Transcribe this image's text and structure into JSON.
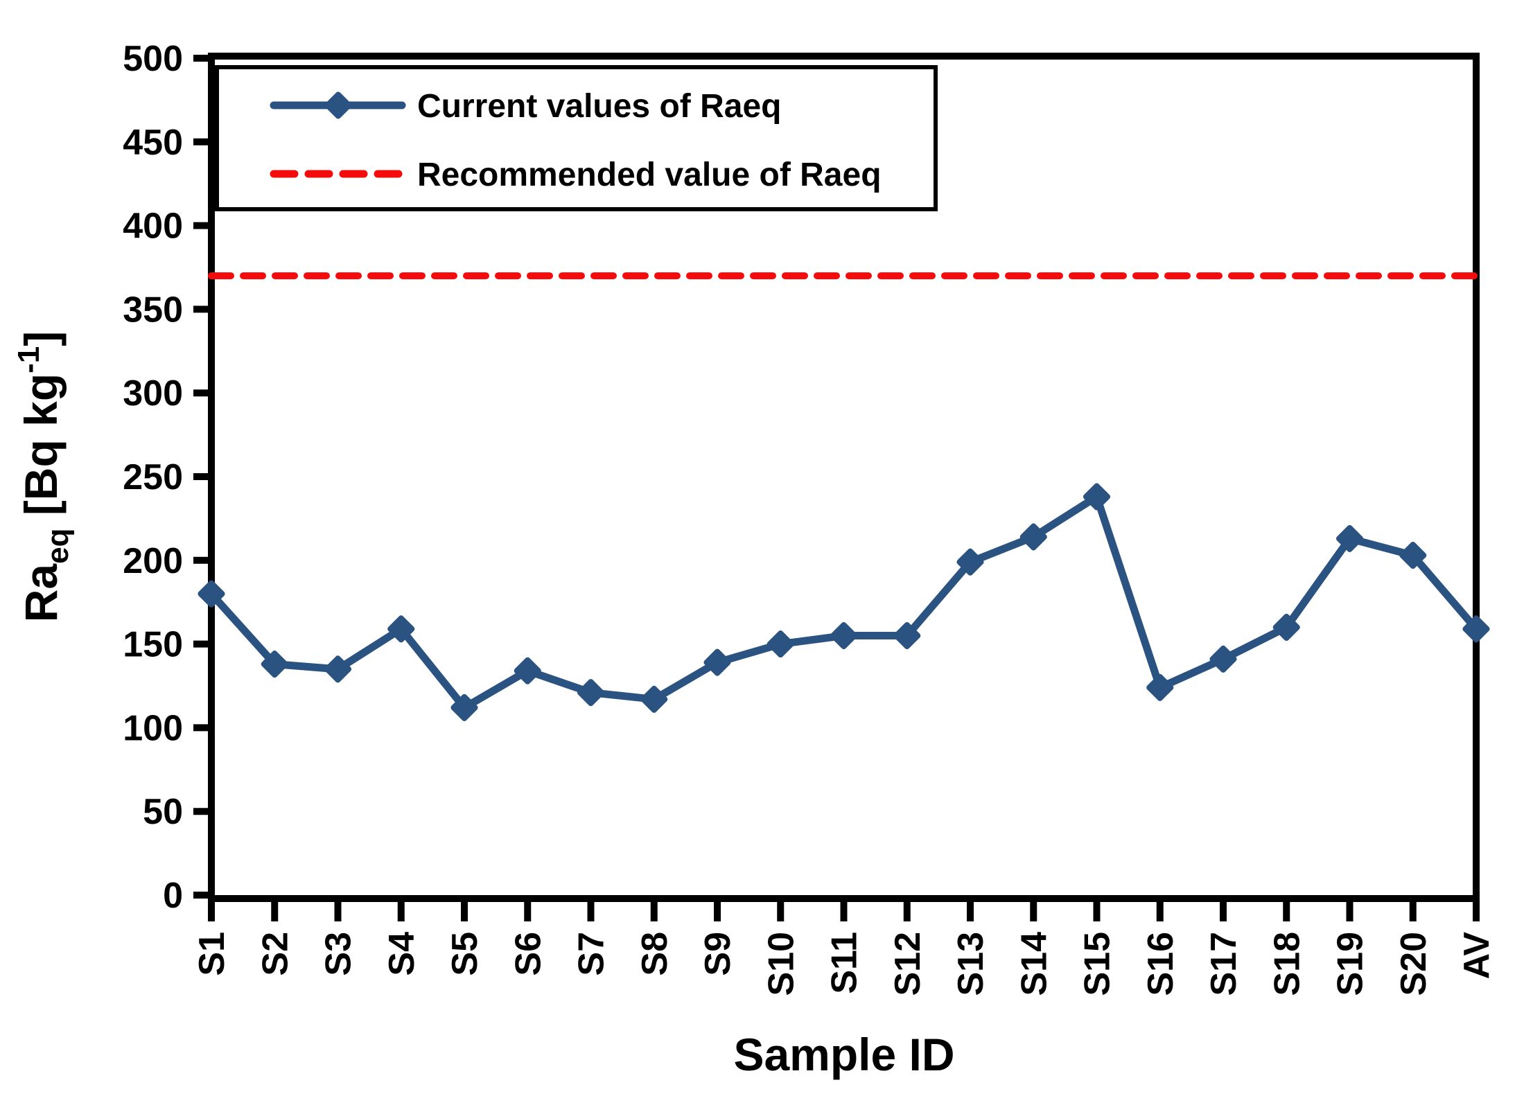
{
  "figure": {
    "background_color": "#FFFFFF",
    "frame_color": "#000000"
  },
  "chart_data": {
    "type": "line",
    "title": "",
    "xlabel": "Sample ID",
    "ylabel": "Raeq [Bq kg-1]",
    "ylabel_parts": {
      "base": "Ra",
      "subscript": "eq",
      "unit_open": " [Bq kg",
      "superscript": "-1",
      "unit_close": "]"
    },
    "categories": [
      "S1",
      "S2",
      "S3",
      "S4",
      "S5",
      "S6",
      "S7",
      "S8",
      "S9",
      "S10",
      "S11",
      "S12",
      "S13",
      "S14",
      "S15",
      "S16",
      "S17",
      "S18",
      "S19",
      "S20",
      "AV"
    ],
    "series": [
      {
        "name": "Current values of Raeq",
        "type": "line-with-markers",
        "marker": "diamond",
        "color": "#2B5381",
        "values": [
          180,
          138,
          135,
          159,
          112,
          134,
          121,
          117,
          139,
          150,
          155,
          155,
          199,
          214,
          238,
          124,
          141,
          160,
          213,
          203,
          159
        ]
      },
      {
        "name": "Recommended value of Raeq",
        "type": "horizontal-dashed-line",
        "color": "#F40B0B",
        "value": 370
      }
    ],
    "ylim": [
      0,
      500
    ],
    "yticks": [
      0,
      50,
      100,
      150,
      200,
      250,
      300,
      350,
      400,
      450,
      500
    ],
    "grid": false,
    "legend_position": "top-left"
  }
}
